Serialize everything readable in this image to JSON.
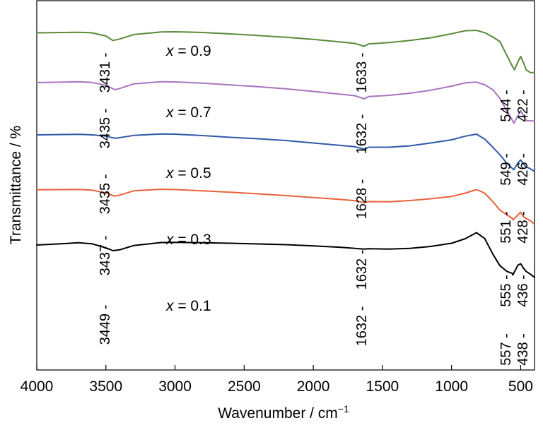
{
  "chart_data": {
    "type": "line",
    "xlabel": "Wavenumber / cm",
    "xlabel_sup": "−1",
    "ylabel": "Transmittance / %",
    "xlim": [
      4000,
      400
    ],
    "x_reversed": true,
    "y_ticks": false,
    "grid": false,
    "xticks": [
      4000,
      3500,
      3000,
      2500,
      2000,
      1500,
      1000,
      500
    ],
    "xtick_labels": [
      "4000",
      "3500",
      "3000",
      "2500",
      "2000",
      "1500",
      "1000",
      "500"
    ],
    "series": [
      {
        "name": "x = 0.9",
        "label_prefix": "x",
        "label_rest": " = 0.9",
        "color": "#5a8a3a",
        "points": [
          [
            4000,
            0.2
          ],
          [
            3800,
            0.4
          ],
          [
            3700,
            0.5
          ],
          [
            3600,
            0.2
          ],
          [
            3500,
            -1.6
          ],
          [
            3450,
            -4.1
          ],
          [
            3400,
            -3.3
          ],
          [
            3300,
            -0.8
          ],
          [
            3100,
            0.7
          ],
          [
            3000,
            0.8
          ],
          [
            2800,
            0.4
          ],
          [
            2600,
            -0.4
          ],
          [
            2400,
            -1.3
          ],
          [
            2200,
            -2.3
          ],
          [
            2000,
            -3.5
          ],
          [
            1800,
            -5.0
          ],
          [
            1700,
            -5.8
          ],
          [
            1633,
            -7.4
          ],
          [
            1600,
            -6.1
          ],
          [
            1450,
            -5.3
          ],
          [
            1300,
            -4.1
          ],
          [
            1150,
            -2.6
          ],
          [
            1000,
            -0.3
          ],
          [
            900,
            1.4
          ],
          [
            820,
            1.6
          ],
          [
            760,
            0.3
          ],
          [
            700,
            -2.2
          ],
          [
            650,
            -4.8
          ],
          [
            600,
            -12.6
          ],
          [
            560,
            -18.7
          ],
          [
            544,
            -20.7
          ],
          [
            520,
            -16.2
          ],
          [
            500,
            -13.2
          ],
          [
            480,
            -16.7
          ],
          [
            460,
            -20.8
          ],
          [
            430,
            -22.3
          ],
          [
            400,
            -22.3
          ]
        ],
        "peaks": [
          {
            "x": 3431,
            "label": "3431"
          },
          {
            "x": 1633,
            "label": "1633"
          },
          {
            "x": 544,
            "label": "544"
          },
          {
            "x": 422,
            "label": "422"
          }
        ]
      },
      {
        "name": "x = 0.7",
        "label_prefix": "x",
        "label_rest": " = 0.7",
        "color": "#a774bf",
        "points": [
          [
            4000,
            -28.0
          ],
          [
            3800,
            -27.7
          ],
          [
            3700,
            -27.5
          ],
          [
            3600,
            -27.9
          ],
          [
            3500,
            -29.5
          ],
          [
            3435,
            -32.0
          ],
          [
            3400,
            -31.3
          ],
          [
            3300,
            -28.7
          ],
          [
            3100,
            -27.5
          ],
          [
            3000,
            -27.6
          ],
          [
            2800,
            -28.3
          ],
          [
            2600,
            -29.3
          ],
          [
            2400,
            -30.3
          ],
          [
            2200,
            -31.5
          ],
          [
            2000,
            -33.0
          ],
          [
            1800,
            -34.6
          ],
          [
            1700,
            -35.4
          ],
          [
            1632,
            -37.2
          ],
          [
            1600,
            -35.9
          ],
          [
            1450,
            -35.2
          ],
          [
            1300,
            -34.0
          ],
          [
            1150,
            -32.3
          ],
          [
            1000,
            -30.0
          ],
          [
            900,
            -28.1
          ],
          [
            820,
            -27.7
          ],
          [
            760,
            -29.2
          ],
          [
            700,
            -32.1
          ],
          [
            650,
            -37.0
          ],
          [
            600,
            -44.0
          ],
          [
            560,
            -49.4
          ],
          [
            549,
            -51.0
          ],
          [
            520,
            -46.8
          ],
          [
            500,
            -43.8
          ],
          [
            480,
            -46.9
          ],
          [
            460,
            -49.5
          ],
          [
            430,
            -49.7
          ],
          [
            400,
            -49.7
          ]
        ],
        "peaks": [
          {
            "x": 3435,
            "label": "3435"
          },
          {
            "x": 1632,
            "label": "1632"
          },
          {
            "x": 549,
            "label": "549"
          },
          {
            "x": 426,
            "label": "426"
          }
        ]
      },
      {
        "name": "x = 0.5",
        "label_prefix": "x",
        "label_rest": " = 0.5",
        "color": "#2f5aa8",
        "points": [
          [
            4000,
            -57.6
          ],
          [
            3800,
            -57.4
          ],
          [
            3700,
            -57.3
          ],
          [
            3600,
            -57.6
          ],
          [
            3500,
            -58.3
          ],
          [
            3435,
            -59.5
          ],
          [
            3400,
            -59.2
          ],
          [
            3300,
            -57.9
          ],
          [
            3100,
            -57.1
          ],
          [
            3000,
            -57.2
          ],
          [
            2800,
            -58.0
          ],
          [
            2600,
            -59.0
          ],
          [
            2400,
            -59.8
          ],
          [
            2200,
            -60.8
          ],
          [
            2000,
            -62.2
          ],
          [
            1800,
            -63.6
          ],
          [
            1700,
            -64.3
          ],
          [
            1628,
            -65.7
          ],
          [
            1600,
            -64.6
          ],
          [
            1450,
            -64.6
          ],
          [
            1300,
            -63.8
          ],
          [
            1150,
            -62.2
          ],
          [
            1000,
            -60.4
          ],
          [
            900,
            -58.3
          ],
          [
            820,
            -57.2
          ],
          [
            760,
            -60.0
          ],
          [
            700,
            -64.7
          ],
          [
            650,
            -68.9
          ],
          [
            600,
            -73.7
          ],
          [
            560,
            -76.6
          ],
          [
            551,
            -77.4
          ],
          [
            520,
            -73.4
          ],
          [
            500,
            -71.8
          ],
          [
            480,
            -74.1
          ],
          [
            460,
            -75.8
          ],
          [
            430,
            -76.8
          ],
          [
            400,
            -78.3
          ]
        ],
        "peaks": [
          {
            "x": 3435,
            "label": "3435"
          },
          {
            "x": 1628,
            "label": "1628"
          },
          {
            "x": 551,
            "label": "551"
          },
          {
            "x": 428,
            "label": "428"
          }
        ]
      },
      {
        "name": "x = 0.3",
        "label_prefix": "x",
        "label_rest": " = 0.3",
        "color": "#e8623c",
        "points": [
          [
            4000,
            -88.7
          ],
          [
            3800,
            -88.6
          ],
          [
            3700,
            -88.5
          ],
          [
            3600,
            -88.9
          ],
          [
            3500,
            -90.5
          ],
          [
            3437,
            -92.3
          ],
          [
            3400,
            -91.7
          ],
          [
            3300,
            -89.3
          ],
          [
            3100,
            -88.4
          ],
          [
            3000,
            -88.6
          ],
          [
            2800,
            -89.3
          ],
          [
            2600,
            -90.1
          ],
          [
            2400,
            -91.0
          ],
          [
            2200,
            -92.0
          ],
          [
            2000,
            -93.1
          ],
          [
            1800,
            -94.2
          ],
          [
            1700,
            -94.9
          ],
          [
            1632,
            -96.0
          ],
          [
            1600,
            -95.4
          ],
          [
            1450,
            -95.5
          ],
          [
            1300,
            -94.8
          ],
          [
            1150,
            -93.8
          ],
          [
            1000,
            -92.5
          ],
          [
            900,
            -90.6
          ],
          [
            820,
            -88.6
          ],
          [
            760,
            -90.6
          ],
          [
            700,
            -95.5
          ],
          [
            650,
            -100.3
          ],
          [
            600,
            -102.8
          ],
          [
            560,
            -105.0
          ],
          [
            555,
            -105.7
          ],
          [
            520,
            -103.0
          ],
          [
            500,
            -101.4
          ],
          [
            480,
            -104.0
          ],
          [
            460,
            -105.0
          ],
          [
            430,
            -106.2
          ],
          [
            400,
            -108.3
          ]
        ],
        "peaks": [
          {
            "x": 3437,
            "label": "3437"
          },
          {
            "x": 1632,
            "label": "1632"
          },
          {
            "x": 555,
            "label": "555"
          },
          {
            "x": 436,
            "label": "436"
          }
        ]
      },
      {
        "name": "x = 0.1",
        "label_prefix": "x",
        "label_rest": " = 0.1",
        "color": "#000000",
        "points": [
          [
            4000,
            -120.0
          ],
          [
            3800,
            -119.2
          ],
          [
            3700,
            -118.7
          ],
          [
            3600,
            -119.3
          ],
          [
            3500,
            -121.6
          ],
          [
            3449,
            -123.2
          ],
          [
            3400,
            -122.7
          ],
          [
            3300,
            -120.3
          ],
          [
            3100,
            -118.6
          ],
          [
            3000,
            -118.5
          ],
          [
            2800,
            -118.7
          ],
          [
            2600,
            -119.0
          ],
          [
            2400,
            -119.4
          ],
          [
            2200,
            -119.8
          ],
          [
            2000,
            -120.5
          ],
          [
            1800,
            -121.3
          ],
          [
            1700,
            -121.9
          ],
          [
            1632,
            -122.3
          ],
          [
            1600,
            -122.1
          ],
          [
            1450,
            -122.3
          ],
          [
            1300,
            -121.9
          ],
          [
            1150,
            -120.8
          ],
          [
            1000,
            -119.0
          ],
          [
            900,
            -116.4
          ],
          [
            820,
            -113.0
          ],
          [
            760,
            -116.3
          ],
          [
            700,
            -125.3
          ],
          [
            650,
            -131.7
          ],
          [
            600,
            -134.9
          ],
          [
            560,
            -136.1
          ],
          [
            557,
            -137.0
          ],
          [
            520,
            -131.4
          ],
          [
            500,
            -130.6
          ],
          [
            480,
            -133.1
          ],
          [
            460,
            -135.0
          ],
          [
            430,
            -136.5
          ],
          [
            400,
            -138.3
          ]
        ],
        "peaks": [
          {
            "x": 3449,
            "label": "3449"
          },
          {
            "x": 1632,
            "label": "1632"
          },
          {
            "x": 557,
            "label": "557"
          },
          {
            "x": 438,
            "label": "438"
          }
        ]
      }
    ]
  }
}
